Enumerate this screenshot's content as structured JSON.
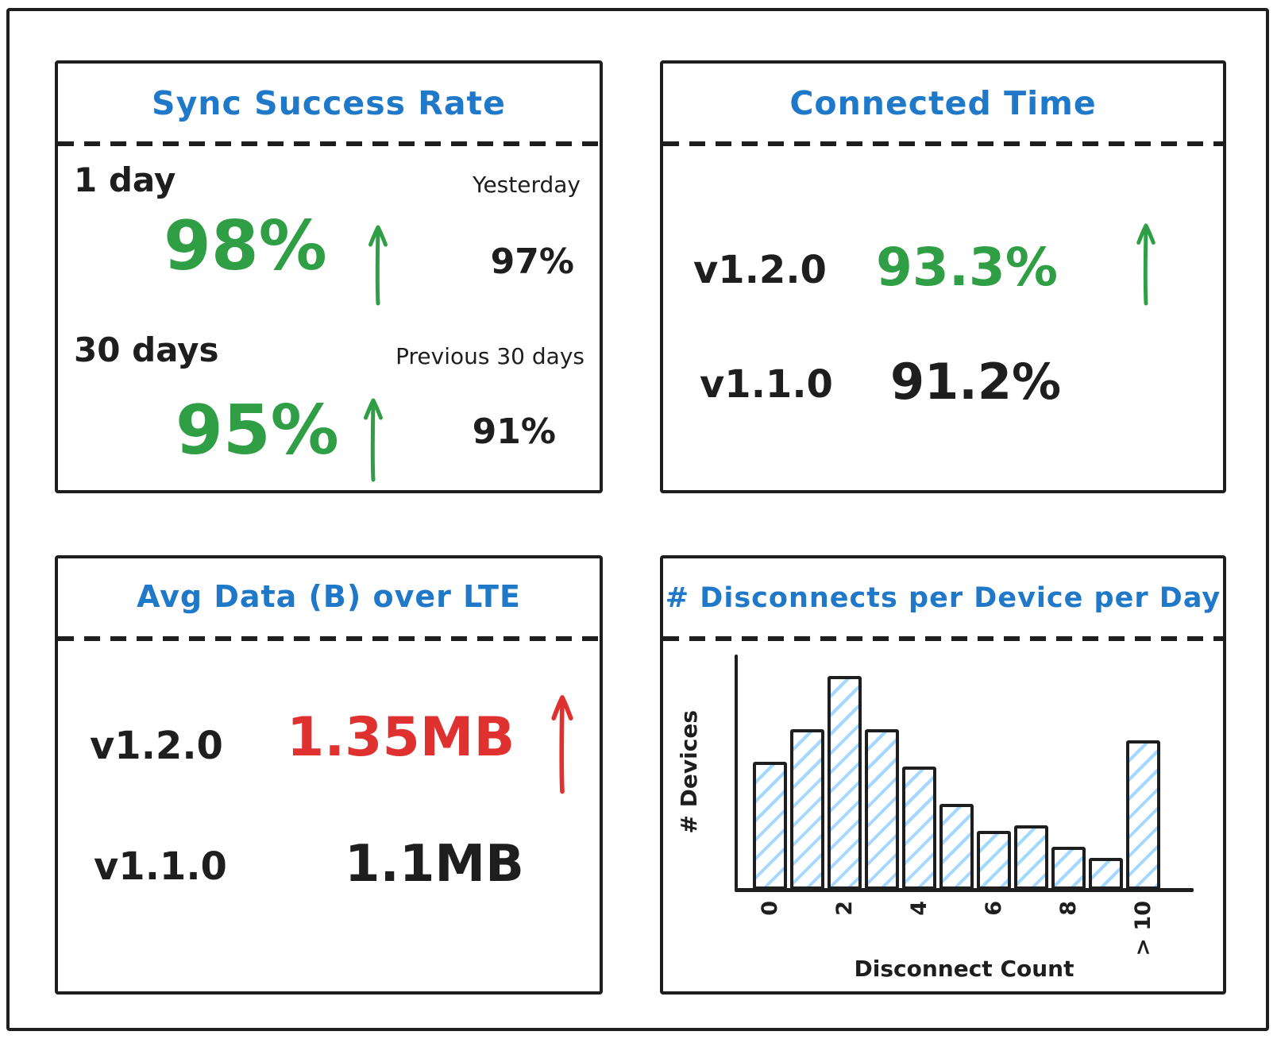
{
  "colors": {
    "title_blue": "#1f78c8",
    "positive_green": "#2f9e44",
    "negative_red": "#e03131",
    "ink_black": "#1e1e1e",
    "bar_hatch_blue": "#a5d8ff"
  },
  "panels": {
    "sync_success_rate": {
      "title": "Sync Success Rate",
      "rows": [
        {
          "period_label": "1 day",
          "comparison_label": "Yesterday",
          "current_value": "98%",
          "comparison_value": "97%",
          "trend": "up",
          "trend_color": "green"
        },
        {
          "period_label": "30 days",
          "comparison_label": "Previous 30 days",
          "current_value": "95%",
          "comparison_value": "91%",
          "trend": "up",
          "trend_color": "green"
        }
      ]
    },
    "connected_time": {
      "title": "Connected Time",
      "rows": [
        {
          "version": "v1.2.0",
          "value": "93.3%",
          "trend": "up",
          "value_color": "green"
        },
        {
          "version": "v1.1.0",
          "value": "91.2%",
          "trend": "none",
          "value_color": "black"
        }
      ]
    },
    "avg_data_lte": {
      "title": "Avg Data (B) over LTE",
      "rows": [
        {
          "version": "v1.2.0",
          "value": "1.35MB",
          "trend": "up",
          "value_color": "red"
        },
        {
          "version": "v1.1.0",
          "value": "1.1MB",
          "trend": "none",
          "value_color": "black"
        }
      ]
    },
    "disconnects": {
      "title": "# Disconnects per Device per Day"
    }
  },
  "chart_data": {
    "type": "bar",
    "title": "# Disconnects per Device per Day",
    "xlabel": "Disconnect Count",
    "ylabel": "# Devices",
    "categories": [
      "0",
      "1",
      "2",
      "3",
      "4",
      "5",
      "6",
      "7",
      "8",
      "9",
      "> 10"
    ],
    "values": [
      24,
      30,
      40,
      30,
      23,
      16,
      11,
      12,
      8,
      6,
      28
    ],
    "tick_every": 2,
    "x_tick_labels_shown": [
      "0",
      "2",
      "4",
      "6",
      "8",
      "> 10"
    ],
    "ylim": [
      0,
      44
    ],
    "y_ticks_shown": false,
    "grid": false,
    "legend": "none",
    "bar_style": "black outline with light-blue diagonal hatch fill"
  }
}
